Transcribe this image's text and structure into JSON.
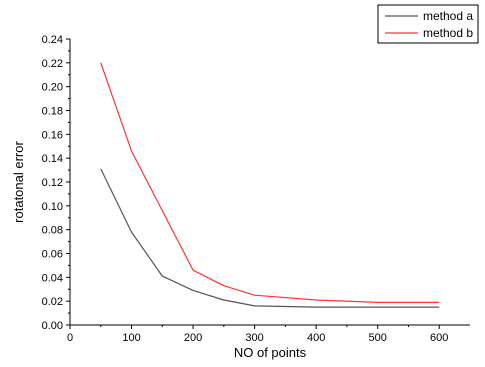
{
  "chart_data": {
    "type": "line",
    "xlabel": "NO of points",
    "ylabel": "rotatonal error",
    "xlim": [
      0,
      650
    ],
    "ylim": [
      0.0,
      0.24
    ],
    "xticks": [
      0,
      100,
      200,
      300,
      400,
      500,
      600
    ],
    "yticks": [
      0.0,
      0.02,
      0.04,
      0.06,
      0.08,
      0.1,
      0.12,
      0.14,
      0.16,
      0.18,
      0.2,
      0.22,
      0.24
    ],
    "x_tick_labels": [
      "0",
      "100",
      "200",
      "300",
      "400",
      "500",
      "600"
    ],
    "y_tick_labels": [
      "0.00",
      "0.02",
      "0.04",
      "0.06",
      "0.08",
      "0.10",
      "0.12",
      "0.14",
      "0.16",
      "0.18",
      "0.20",
      "0.22",
      "0.24"
    ],
    "grid": false,
    "legend_position": "top-right, outside plot",
    "series": [
      {
        "name": "method a",
        "color": "#555555",
        "x": [
          50,
          100,
          150,
          200,
          250,
          300,
          400,
          500,
          600
        ],
        "y": [
          0.131,
          0.078,
          0.041,
          0.029,
          0.021,
          0.016,
          0.015,
          0.015,
          0.015
        ]
      },
      {
        "name": "method b",
        "color": "#ff3333",
        "x": [
          50,
          100,
          150,
          200,
          250,
          300,
          400,
          500,
          600
        ],
        "y": [
          0.22,
          0.146,
          0.096,
          0.046,
          0.033,
          0.025,
          0.021,
          0.019,
          0.019
        ]
      }
    ]
  }
}
